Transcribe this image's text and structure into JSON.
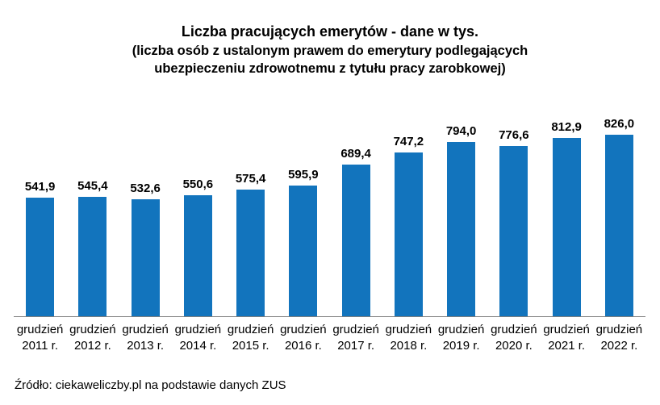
{
  "chart_data": {
    "type": "bar",
    "title": "Liczba pracujących emerytów - dane w tys.",
    "subtitle_lines": [
      "(liczba osób z ustalonym prawem do emerytury podlegających",
      "ubezpieczeniu zdrowotnemu z tytułu pracy zarobkowej)"
    ],
    "categories": [
      "grudzień 2011 r.",
      "grudzień 2012 r.",
      "grudzień 2013 r.",
      "grudzień 2014 r.",
      "grudzień 2015 r.",
      "grudzień 2016 r.",
      "grudzień 2017 r.",
      "grudzień 2018 r.",
      "grudzień 2019 r.",
      "grudzień 2020 r.",
      "grudzień 2021 r.",
      "grudzień 2022 r."
    ],
    "values": [
      541.9,
      545.4,
      532.6,
      550.6,
      575.4,
      595.9,
      689.4,
      747.2,
      794.0,
      776.6,
      812.9,
      826.0
    ],
    "value_labels": [
      "541,9",
      "545,4",
      "532,6",
      "550,6",
      "575,4",
      "595,9",
      "689,4",
      "747,2",
      "794,0",
      "776,6",
      "812,9",
      "826,0"
    ],
    "xlabel": "",
    "ylabel": "",
    "ylim": [
      0,
      900
    ],
    "grid": false,
    "legend": false,
    "bar_color": "#1274BD",
    "axis_color": "#808080",
    "source": "Źródło: ciekaweliczby.pl na podstawie danych ZUS"
  }
}
